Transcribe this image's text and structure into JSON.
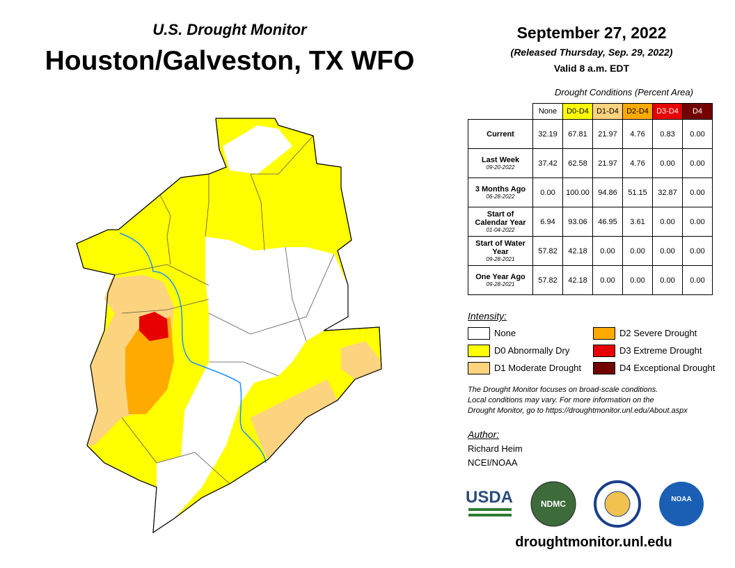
{
  "header": {
    "title": "U.S. Drought Monitor",
    "subtitle": "Houston/Galveston, TX WFO"
  },
  "date": {
    "main": "September 27, 2022",
    "released": "(Released Thursday, Sep. 29, 2022)",
    "valid": "Valid 8 a.m. EDT"
  },
  "table": {
    "caption": "Drought Conditions (Percent Area)",
    "columns": [
      "None",
      "D0-D4",
      "D1-D4",
      "D2-D4",
      "D3-D4",
      "D4"
    ],
    "rows": [
      {
        "label": "Current",
        "date": null,
        "values": [
          "32.19",
          "67.81",
          "21.97",
          "4.76",
          "0.83",
          "0.00"
        ]
      },
      {
        "label": "Last Week",
        "date": "09-20-2022",
        "values": [
          "37.42",
          "62.58",
          "21.97",
          "4.76",
          "0.00",
          "0.00"
        ]
      },
      {
        "label": "3 Months Ago",
        "date": "06-28-2022",
        "values": [
          "0.00",
          "100.00",
          "94.86",
          "51.15",
          "32.87",
          "0.00"
        ]
      },
      {
        "label": "Start of Calendar Year",
        "date": "01-04-2022",
        "values": [
          "6.94",
          "93.06",
          "46.95",
          "3.61",
          "0.00",
          "0.00"
        ]
      },
      {
        "label": "Start of Water Year",
        "date": "09-28-2021",
        "values": [
          "57.82",
          "42.18",
          "0.00",
          "0.00",
          "0.00",
          "0.00"
        ]
      },
      {
        "label": "One Year Ago",
        "date": "09-28-2021",
        "values": [
          "57.82",
          "42.18",
          "0.00",
          "0.00",
          "0.00",
          "0.00"
        ]
      }
    ]
  },
  "legend": {
    "title": "Intensity:",
    "items": [
      "None",
      "D0 Abnormally Dry",
      "D1 Moderate Drought",
      "D2 Severe Drought",
      "D3 Extreme Drought",
      "D4 Exceptional Drought"
    ]
  },
  "note": [
    "The Drought Monitor focuses on broad-scale conditions.",
    "Local conditions may vary. For more information on the",
    "Drought Monitor, go to https://droughtmonitor.unl.edu/About.aspx"
  ],
  "author": {
    "label": "Author:",
    "name": "Richard Heim",
    "org": "NCEI/NOAA"
  },
  "logos": [
    "USDA",
    "NDMC",
    "NOAA"
  ],
  "url": "droughtmonitor.unl.edu"
}
